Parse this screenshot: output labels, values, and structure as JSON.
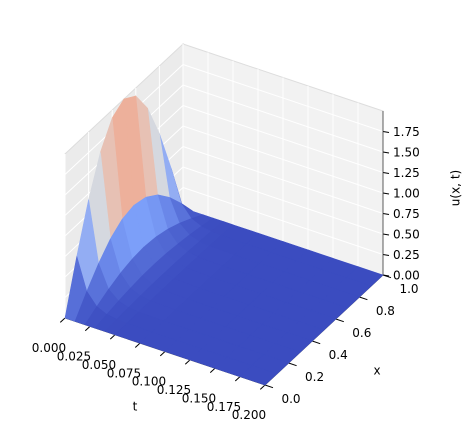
{
  "chart_data": {
    "type": "surface",
    "xlabel": "t",
    "ylabel": "x",
    "zlabel": "u(x, t)",
    "colormap": "coolwarm",
    "t": [
      0,
      0.01,
      0.02,
      0.03,
      0.04,
      0.05,
      0.075,
      0.1,
      0.125,
      0.15,
      0.175,
      0.2
    ],
    "x": [
      0,
      0.1,
      0.2,
      0.3,
      0.4,
      0.5,
      0.6,
      0.7,
      0.8,
      0.9,
      1
    ],
    "z": [
      [
        0,
        0.618,
        1.176,
        1.618,
        1.902,
        2,
        1.902,
        1.618,
        1.176,
        0.618,
        0
      ],
      [
        0,
        0.231,
        0.439,
        0.604,
        0.709,
        0.746,
        0.709,
        0.604,
        0.439,
        0.231,
        0
      ],
      [
        0,
        0.086,
        0.163,
        0.225,
        0.264,
        0.278,
        0.264,
        0.225,
        0.163,
        0.086,
        0
      ],
      [
        0,
        0.032,
        0.061,
        0.084,
        0.099,
        0.104,
        0.099,
        0.084,
        0.061,
        0.032,
        0
      ],
      [
        0,
        0.012,
        0.022,
        0.031,
        0.036,
        0.038,
        0.036,
        0.031,
        0.022,
        0.012,
        0
      ],
      [
        0,
        0.004,
        0.008,
        0.011,
        0.013,
        0.014,
        0.013,
        0.011,
        0.008,
        0.004,
        0
      ],
      [
        0,
        0,
        0,
        0,
        0,
        0,
        0,
        0,
        0,
        0,
        0
      ],
      [
        0,
        0,
        0,
        0,
        0,
        0,
        0,
        0,
        0,
        0,
        0
      ],
      [
        0,
        0,
        0,
        0,
        0,
        0,
        0,
        0,
        0,
        0,
        0
      ],
      [
        0,
        0,
        0,
        0,
        0,
        0,
        0,
        0,
        0,
        0,
        0
      ],
      [
        0,
        0,
        0,
        0,
        0,
        0,
        0,
        0,
        0,
        0,
        0
      ],
      [
        0,
        0,
        0,
        0,
        0,
        0,
        0,
        0,
        0,
        0,
        0
      ]
    ],
    "tlim": [
      0,
      0.2
    ],
    "xlim": [
      0,
      1
    ],
    "zlim": [
      0,
      2
    ],
    "tticks": [
      {
        "value": 0,
        "label": "0.000"
      },
      {
        "value": 0.025,
        "label": "0.025"
      },
      {
        "value": 0.05,
        "label": "0.050"
      },
      {
        "value": 0.075,
        "label": "0.075"
      },
      {
        "value": 0.1,
        "label": "0.100"
      },
      {
        "value": 0.125,
        "label": "0.125"
      },
      {
        "value": 0.15,
        "label": "0.150"
      },
      {
        "value": 0.175,
        "label": "0.175"
      },
      {
        "value": 0.2,
        "label": "0.200"
      }
    ],
    "xticks": [
      {
        "value": 0,
        "label": "0.0"
      },
      0.2,
      0.4,
      0.6,
      0.8,
      {
        "value": 1,
        "label": "1.0"
      }
    ],
    "zticks": [
      {
        "value": 0,
        "label": "0.00"
      },
      0.25,
      {
        "value": 0.5,
        "label": "0.50"
      },
      0.75,
      {
        "value": 1,
        "label": "1.00"
      },
      1.25,
      {
        "value": 1.5,
        "label": "1.50"
      },
      1.75
    ],
    "grid": true
  }
}
